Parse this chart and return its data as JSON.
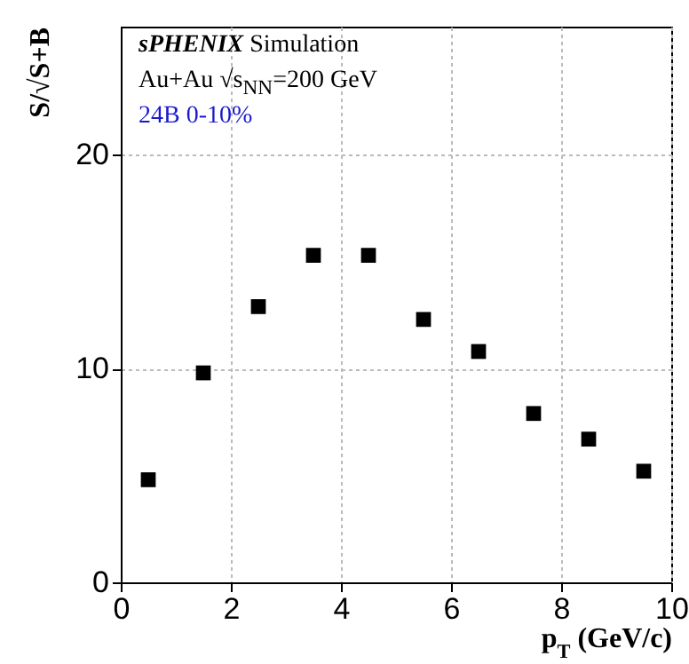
{
  "chart_data": {
    "type": "scatter",
    "xlabel": "p$_{T}$ (GeV/c)",
    "ylabel": "S/√S+B",
    "x": [
      0.5,
      1.5,
      2.5,
      3.5,
      4.5,
      5.5,
      6.5,
      7.5,
      8.5,
      9.5
    ],
    "series": [
      {
        "color": "#000000",
        "values": [
          4.8,
          9.8,
          12.9,
          15.3,
          15.3,
          12.3,
          10.8,
          7.9,
          6.7,
          5.2
        ]
      }
    ],
    "xlim": [
      0,
      10
    ],
    "xticks": [
      0,
      2,
      4,
      6,
      8,
      10
    ],
    "ylim": [
      0,
      26
    ],
    "yticks": [
      0,
      10,
      20
    ],
    "grid": true,
    "marker": "square",
    "annotations": [
      "sPHENIX Simulation",
      "Au+Au √s$_{NN}$=200 GeV",
      "24B  0-10%"
    ]
  }
}
